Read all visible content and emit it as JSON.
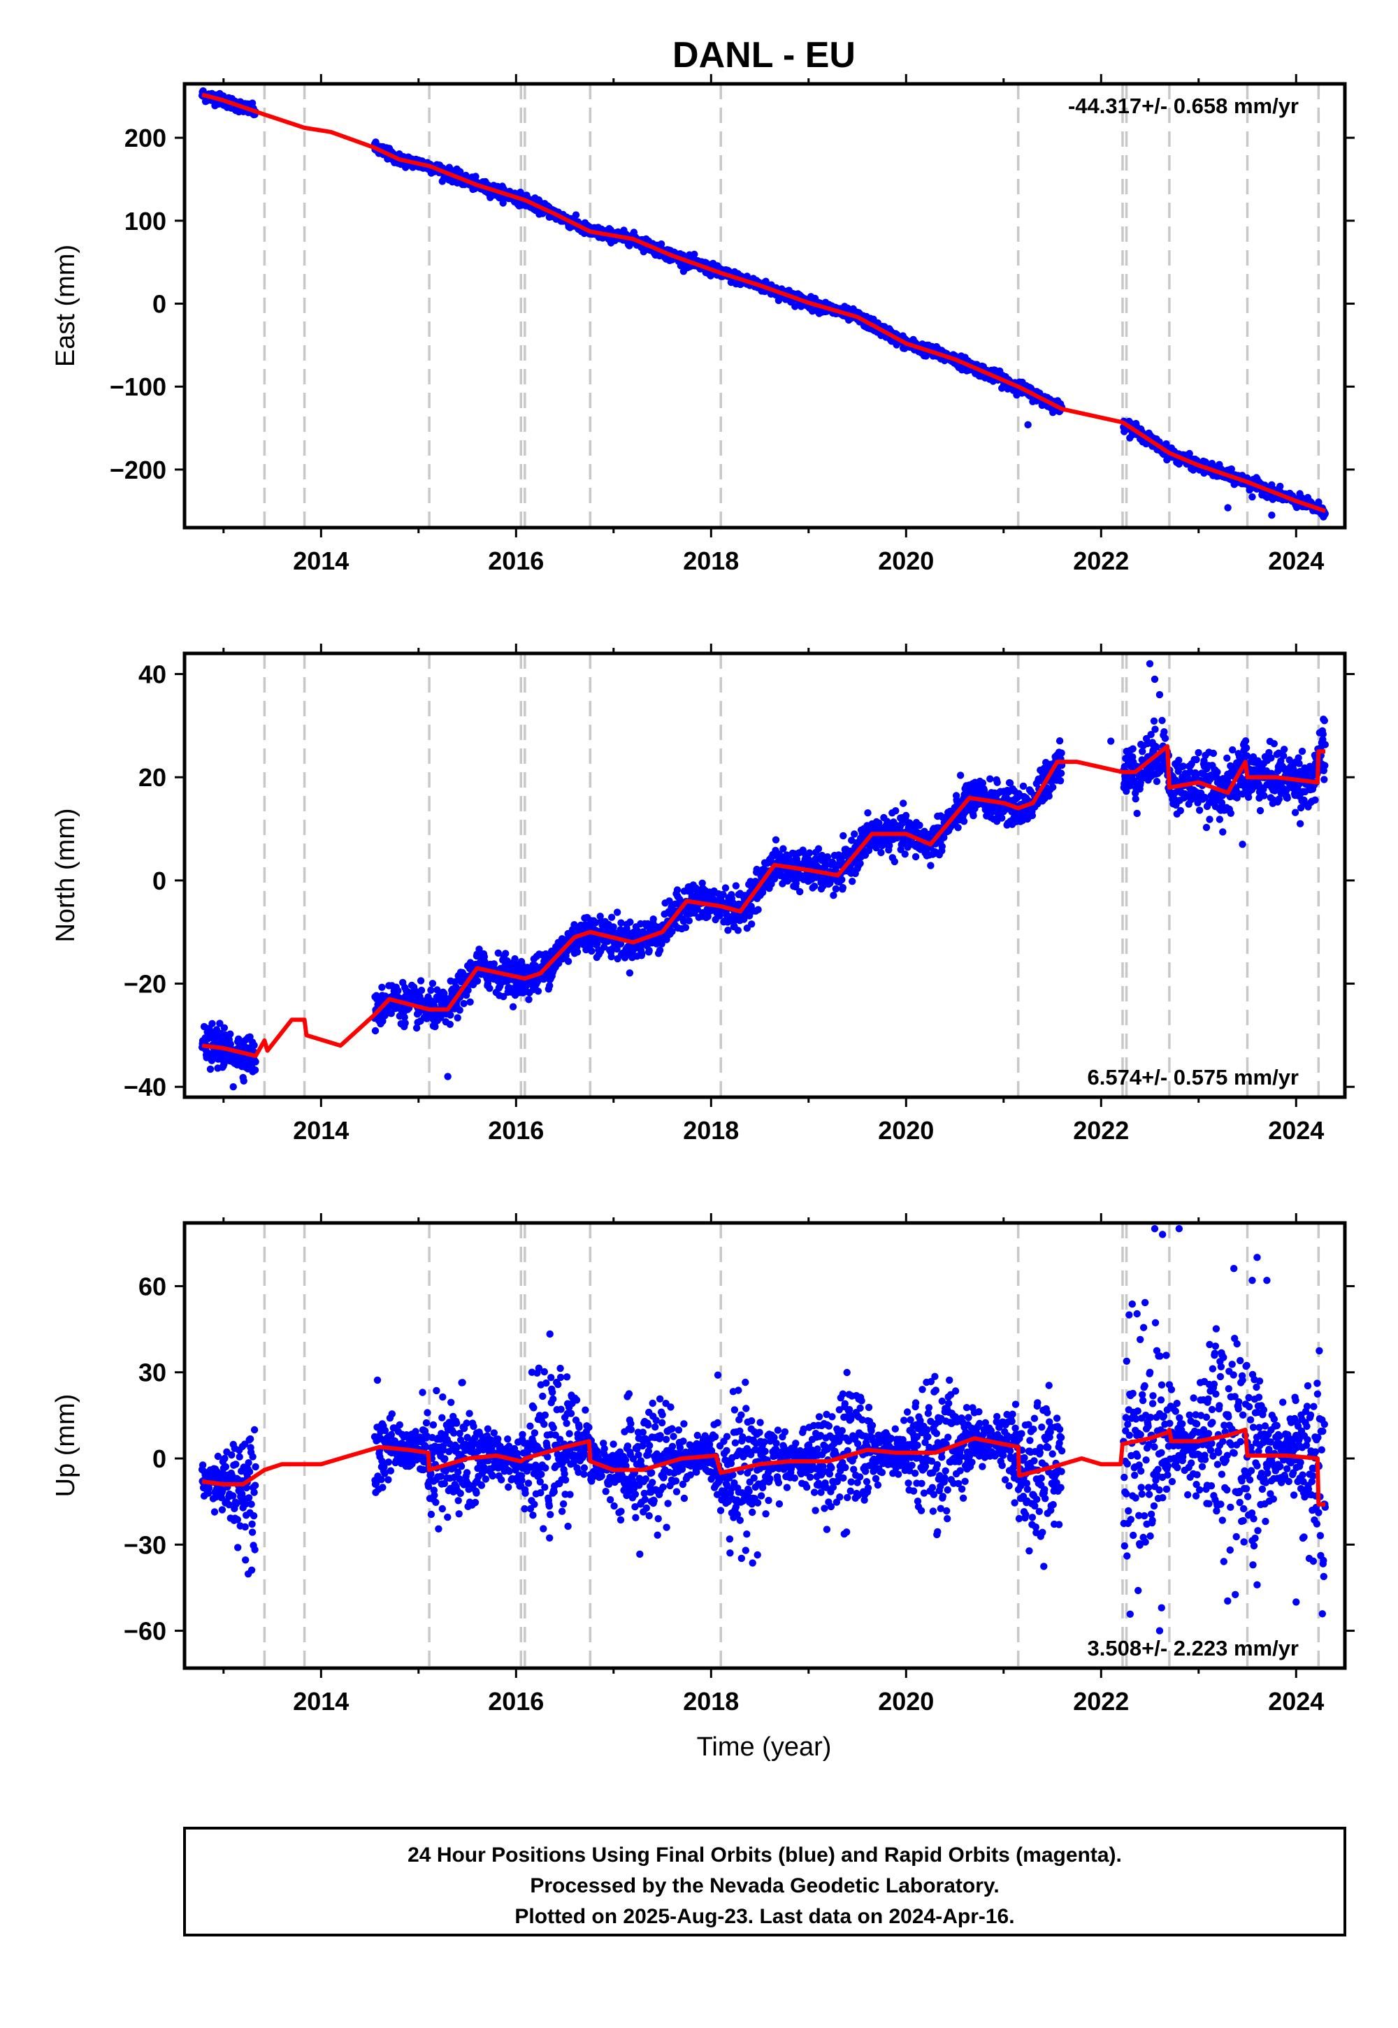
{
  "figure": {
    "title": "DANL - EU",
    "x_axis_label": "Time (year)",
    "footer_lines": [
      "24 Hour Positions Using Final Orbits (blue) and Rapid Orbits (magenta).",
      "Processed by the Nevada Geodetic Laboratory.",
      "Plotted on 2025-Aug-23. Last data on 2024-Apr-16."
    ]
  },
  "colors": {
    "data_points": "#0000ff",
    "model_fit": "#ff0000",
    "equipment_change_lines": "#c8c8c8",
    "frame": "#000000"
  },
  "chart_data": [
    {
      "type": "scatter",
      "name": "east",
      "ylabel": "East (mm)",
      "xlim": [
        2012.6,
        2024.5
      ],
      "ylim": [
        -270,
        265
      ],
      "xticks": [
        2014,
        2016,
        2018,
        2020,
        2022,
        2024
      ],
      "yticks": [
        -200,
        -100,
        0,
        100,
        200
      ],
      "tick_labels": [
        "2014",
        "2016",
        "2018",
        "2020",
        "2022",
        "2024"
      ],
      "ytick_labels": [
        "−200",
        "−100",
        "0",
        "100",
        "200"
      ],
      "rate_label": "-44.317+/- 0.658 mm/yr",
      "rate_position": "top-right",
      "equipment_changes": [
        2013.42,
        2013.83,
        2015.11,
        2016.05,
        2016.09,
        2016.76,
        2018.1,
        2021.15,
        2022.22,
        2022.26,
        2022.7,
        2023.5,
        2024.23
      ],
      "data_segments": [
        [
          2012.78,
          2013.33
        ],
        [
          2014.55,
          2021.6
        ],
        [
          2022.23,
          2024.3
        ]
      ],
      "fit_points": [
        [
          2012.78,
          252
        ],
        [
          2013.0,
          245
        ],
        [
          2013.42,
          228
        ],
        [
          2013.83,
          212
        ],
        [
          2014.1,
          207
        ],
        [
          2014.55,
          188
        ],
        [
          2014.8,
          174
        ],
        [
          2015.11,
          166
        ],
        [
          2015.6,
          143
        ],
        [
          2016.09,
          125
        ],
        [
          2016.4,
          108
        ],
        [
          2016.76,
          87
        ],
        [
          2017.2,
          78
        ],
        [
          2017.6,
          58
        ],
        [
          2018.1,
          37
        ],
        [
          2018.5,
          22
        ],
        [
          2019.0,
          1
        ],
        [
          2019.5,
          -16
        ],
        [
          2020.0,
          -48
        ],
        [
          2020.5,
          -67
        ],
        [
          2021.15,
          -100
        ],
        [
          2021.6,
          -127
        ],
        [
          2022.22,
          -143
        ],
        [
          2022.7,
          -180
        ],
        [
          2023.0,
          -195
        ],
        [
          2023.5,
          -215
        ],
        [
          2024.0,
          -238
        ],
        [
          2024.3,
          -250
        ]
      ],
      "noise_mm": 3.5,
      "outliers": [
        [
          2015.0,
          173
        ],
        [
          2021.25,
          -146
        ],
        [
          2023.3,
          -246
        ],
        [
          2023.75,
          -255
        ],
        [
          2023.55,
          -233
        ]
      ]
    },
    {
      "type": "scatter",
      "name": "north",
      "ylabel": "North (mm)",
      "xlim": [
        2012.6,
        2024.5
      ],
      "ylim": [
        -42,
        44
      ],
      "xticks": [
        2014,
        2016,
        2018,
        2020,
        2022,
        2024
      ],
      "yticks": [
        -40,
        -20,
        0,
        20,
        40
      ],
      "tick_labels": [
        "2014",
        "2016",
        "2018",
        "2020",
        "2022",
        "2024"
      ],
      "ytick_labels": [
        "−40",
        "−20",
        "0",
        "20",
        "40"
      ],
      "rate_label": "6.574+/- 0.575 mm/yr",
      "rate_position": "bottom-right",
      "equipment_changes": [
        2013.42,
        2013.83,
        2015.11,
        2016.05,
        2016.09,
        2016.76,
        2018.1,
        2021.15,
        2022.22,
        2022.26,
        2022.7,
        2023.5,
        2024.23
      ],
      "data_segments": [
        [
          2012.78,
          2013.33
        ],
        [
          2014.55,
          2021.6
        ],
        [
          2022.23,
          2024.3
        ]
      ],
      "fit_points": [
        [
          2012.78,
          -32
        ],
        [
          2013.0,
          -32.5
        ],
        [
          2013.33,
          -34
        ],
        [
          2013.42,
          -31
        ],
        [
          2013.45,
          -33
        ],
        [
          2013.7,
          -27
        ],
        [
          2013.83,
          -27
        ],
        [
          2013.85,
          -30
        ],
        [
          2014.2,
          -32
        ],
        [
          2014.55,
          -26
        ],
        [
          2014.7,
          -23
        ],
        [
          2015.11,
          -25
        ],
        [
          2015.3,
          -25
        ],
        [
          2015.6,
          -17
        ],
        [
          2016.09,
          -19
        ],
        [
          2016.25,
          -18
        ],
        [
          2016.6,
          -11
        ],
        [
          2016.76,
          -10
        ],
        [
          2017.2,
          -12
        ],
        [
          2017.5,
          -10
        ],
        [
          2017.75,
          -4
        ],
        [
          2018.1,
          -5
        ],
        [
          2018.3,
          -6
        ],
        [
          2018.65,
          3
        ],
        [
          2019.0,
          2
        ],
        [
          2019.3,
          1
        ],
        [
          2019.65,
          9
        ],
        [
          2020.0,
          9
        ],
        [
          2020.25,
          7
        ],
        [
          2020.65,
          16
        ],
        [
          2021.0,
          15
        ],
        [
          2021.15,
          14
        ],
        [
          2021.3,
          15
        ],
        [
          2021.55,
          23
        ],
        [
          2021.75,
          23
        ],
        [
          2022.22,
          21
        ],
        [
          2022.26,
          21
        ],
        [
          2022.35,
          21
        ],
        [
          2022.68,
          26
        ],
        [
          2022.7,
          18
        ],
        [
          2023.0,
          19
        ],
        [
          2023.3,
          17
        ],
        [
          2023.48,
          23
        ],
        [
          2023.5,
          20
        ],
        [
          2023.8,
          20
        ],
        [
          2024.22,
          19
        ],
        [
          2024.23,
          25
        ],
        [
          2024.3,
          25
        ]
      ],
      "noise_mm": 1.8,
      "outliers": [
        [
          2015.3,
          -38
        ],
        [
          2013.1,
          -40
        ],
        [
          2022.5,
          42
        ],
        [
          2022.55,
          39
        ],
        [
          2022.6,
          36
        ],
        [
          2023.45,
          7
        ],
        [
          2022.1,
          27
        ]
      ]
    },
    {
      "type": "scatter",
      "name": "up",
      "ylabel": "Up (mm)",
      "xlim": [
        2012.6,
        2024.5
      ],
      "ylim": [
        -73,
        82
      ],
      "xticks": [
        2014,
        2016,
        2018,
        2020,
        2022,
        2024
      ],
      "yticks": [
        -60,
        -30,
        0,
        30,
        60
      ],
      "tick_labels": [
        "2014",
        "2016",
        "2018",
        "2020",
        "2022",
        "2024"
      ],
      "ytick_labels": [
        "−60",
        "−30",
        "0",
        "30",
        "60"
      ],
      "rate_label": "3.508+/- 2.223 mm/yr",
      "rate_position": "bottom-right",
      "equipment_changes": [
        2013.42,
        2013.83,
        2015.11,
        2016.05,
        2016.09,
        2016.76,
        2018.1,
        2021.15,
        2022.22,
        2022.26,
        2022.7,
        2023.5,
        2024.23
      ],
      "data_segments": [
        [
          2012.78,
          2013.33
        ],
        [
          2014.55,
          2021.6
        ],
        [
          2022.23,
          2024.3
        ]
      ],
      "fit_points": [
        [
          2012.78,
          -8
        ],
        [
          2013.0,
          -9
        ],
        [
          2013.2,
          -9
        ],
        [
          2013.42,
          -4
        ],
        [
          2013.6,
          -2
        ],
        [
          2013.83,
          -2
        ],
        [
          2014.0,
          -2
        ],
        [
          2014.3,
          1
        ],
        [
          2014.6,
          4
        ],
        [
          2014.9,
          3
        ],
        [
          2015.1,
          2
        ],
        [
          2015.11,
          -4
        ],
        [
          2015.5,
          0
        ],
        [
          2015.8,
          1
        ],
        [
          2016.05,
          -1
        ],
        [
          2016.09,
          0
        ],
        [
          2016.5,
          4
        ],
        [
          2016.75,
          6
        ],
        [
          2016.76,
          -1
        ],
        [
          2017.0,
          -4
        ],
        [
          2017.3,
          -4
        ],
        [
          2017.7,
          0
        ],
        [
          2018.05,
          1
        ],
        [
          2018.1,
          -5
        ],
        [
          2018.5,
          -2
        ],
        [
          2018.8,
          -1
        ],
        [
          2019.2,
          -1
        ],
        [
          2019.6,
          3
        ],
        [
          2019.9,
          2
        ],
        [
          2020.3,
          2
        ],
        [
          2020.7,
          7
        ],
        [
          2021.0,
          5
        ],
        [
          2021.15,
          4
        ],
        [
          2021.16,
          -6
        ],
        [
          2021.5,
          -3
        ],
        [
          2021.8,
          0
        ],
        [
          2022.0,
          -2
        ],
        [
          2022.2,
          -2
        ],
        [
          2022.22,
          5
        ],
        [
          2022.5,
          7
        ],
        [
          2022.68,
          9
        ],
        [
          2022.7,
          10
        ],
        [
          2022.72,
          6
        ],
        [
          2023.0,
          6
        ],
        [
          2023.3,
          8
        ],
        [
          2023.48,
          10
        ],
        [
          2023.5,
          1
        ],
        [
          2023.9,
          1
        ],
        [
          2024.22,
          0
        ],
        [
          2024.23,
          -16
        ],
        [
          2024.3,
          -16
        ]
      ],
      "noise_mm": 8,
      "outliers": [
        [
          2022.55,
          80
        ],
        [
          2022.63,
          78
        ],
        [
          2022.8,
          80
        ],
        [
          2022.6,
          -60
        ],
        [
          2022.62,
          -52
        ],
        [
          2023.6,
          70
        ],
        [
          2023.55,
          62
        ],
        [
          2023.7,
          62
        ],
        [
          2024.0,
          -50
        ],
        [
          2023.6,
          -44
        ]
      ]
    }
  ]
}
